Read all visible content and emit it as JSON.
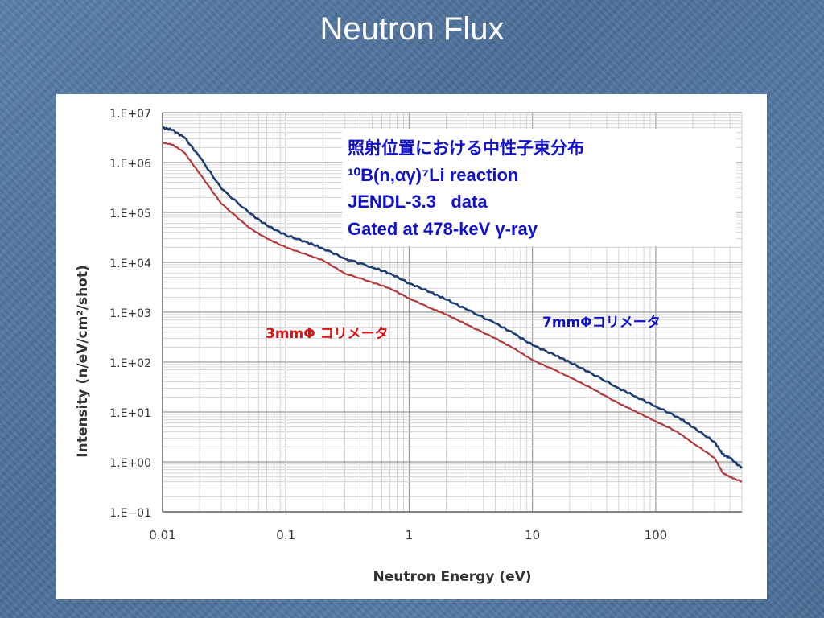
{
  "slide": {
    "title": "Neutron Flux"
  },
  "chart_data": {
    "type": "line",
    "xscale": "log",
    "yscale": "log",
    "xlim": [
      0.01,
      500
    ],
    "ylim": [
      0.1,
      10000000
    ],
    "xlabel": "Neutron Energy (eV)",
    "ylabel": "Intensity (n/eV/cm²/shot)",
    "x_ticks": [
      "0.01",
      "0.1",
      "1",
      "10",
      "100"
    ],
    "y_ticks": [
      "1.E−01",
      "1.E+00",
      "1.E+01",
      "1.E+02",
      "1.E+03",
      "1.E+04",
      "1.E+05",
      "1.E+06",
      "1.E+07"
    ],
    "grid": true,
    "legend_box": {
      "lines": [
        "照射位置における中性子束分布",
        "¹⁰B(n,αγ)⁷Li reaction",
        "JENDL-3.3   data",
        "Gated at 478-keV γ-ray"
      ]
    },
    "series": [
      {
        "name": "7mmΦコリメータ",
        "color": "#1f3f73",
        "x": [
          0.01,
          0.012,
          0.015,
          0.02,
          0.03,
          0.05,
          0.07,
          0.1,
          0.15,
          0.2,
          0.3,
          0.5,
          0.7,
          1,
          1.5,
          2,
          3,
          5,
          7,
          10,
          15,
          20,
          30,
          50,
          70,
          100,
          150,
          200,
          300,
          350,
          400,
          500
        ],
        "y": [
          5000000,
          4500000,
          3200000,
          1300000,
          300000,
          100000,
          55000,
          35000,
          25000,
          19000,
          12000,
          8000,
          6000,
          3800,
          2500,
          1800,
          1100,
          600,
          380,
          220,
          140,
          100,
          60,
          30,
          20,
          13,
          8,
          5,
          2.5,
          1.4,
          1.2,
          0.75
        ]
      },
      {
        "name": "3mmΦ コリメータ",
        "color": "#b33a3a",
        "x": [
          0.01,
          0.012,
          0.015,
          0.02,
          0.03,
          0.05,
          0.07,
          0.1,
          0.15,
          0.2,
          0.3,
          0.5,
          0.7,
          1,
          1.5,
          2,
          3,
          5,
          7,
          10,
          15,
          20,
          30,
          50,
          70,
          100,
          150,
          200,
          300,
          350,
          400,
          500
        ],
        "y": [
          2500000,
          2300000,
          1600000,
          600000,
          150000,
          50000,
          30000,
          20000,
          14000,
          11000,
          6000,
          4000,
          3000,
          1900,
          1200,
          900,
          550,
          300,
          190,
          110,
          70,
          50,
          30,
          15,
          10,
          6.5,
          4,
          2.4,
          1.2,
          0.6,
          0.5,
          0.4
        ]
      }
    ]
  }
}
